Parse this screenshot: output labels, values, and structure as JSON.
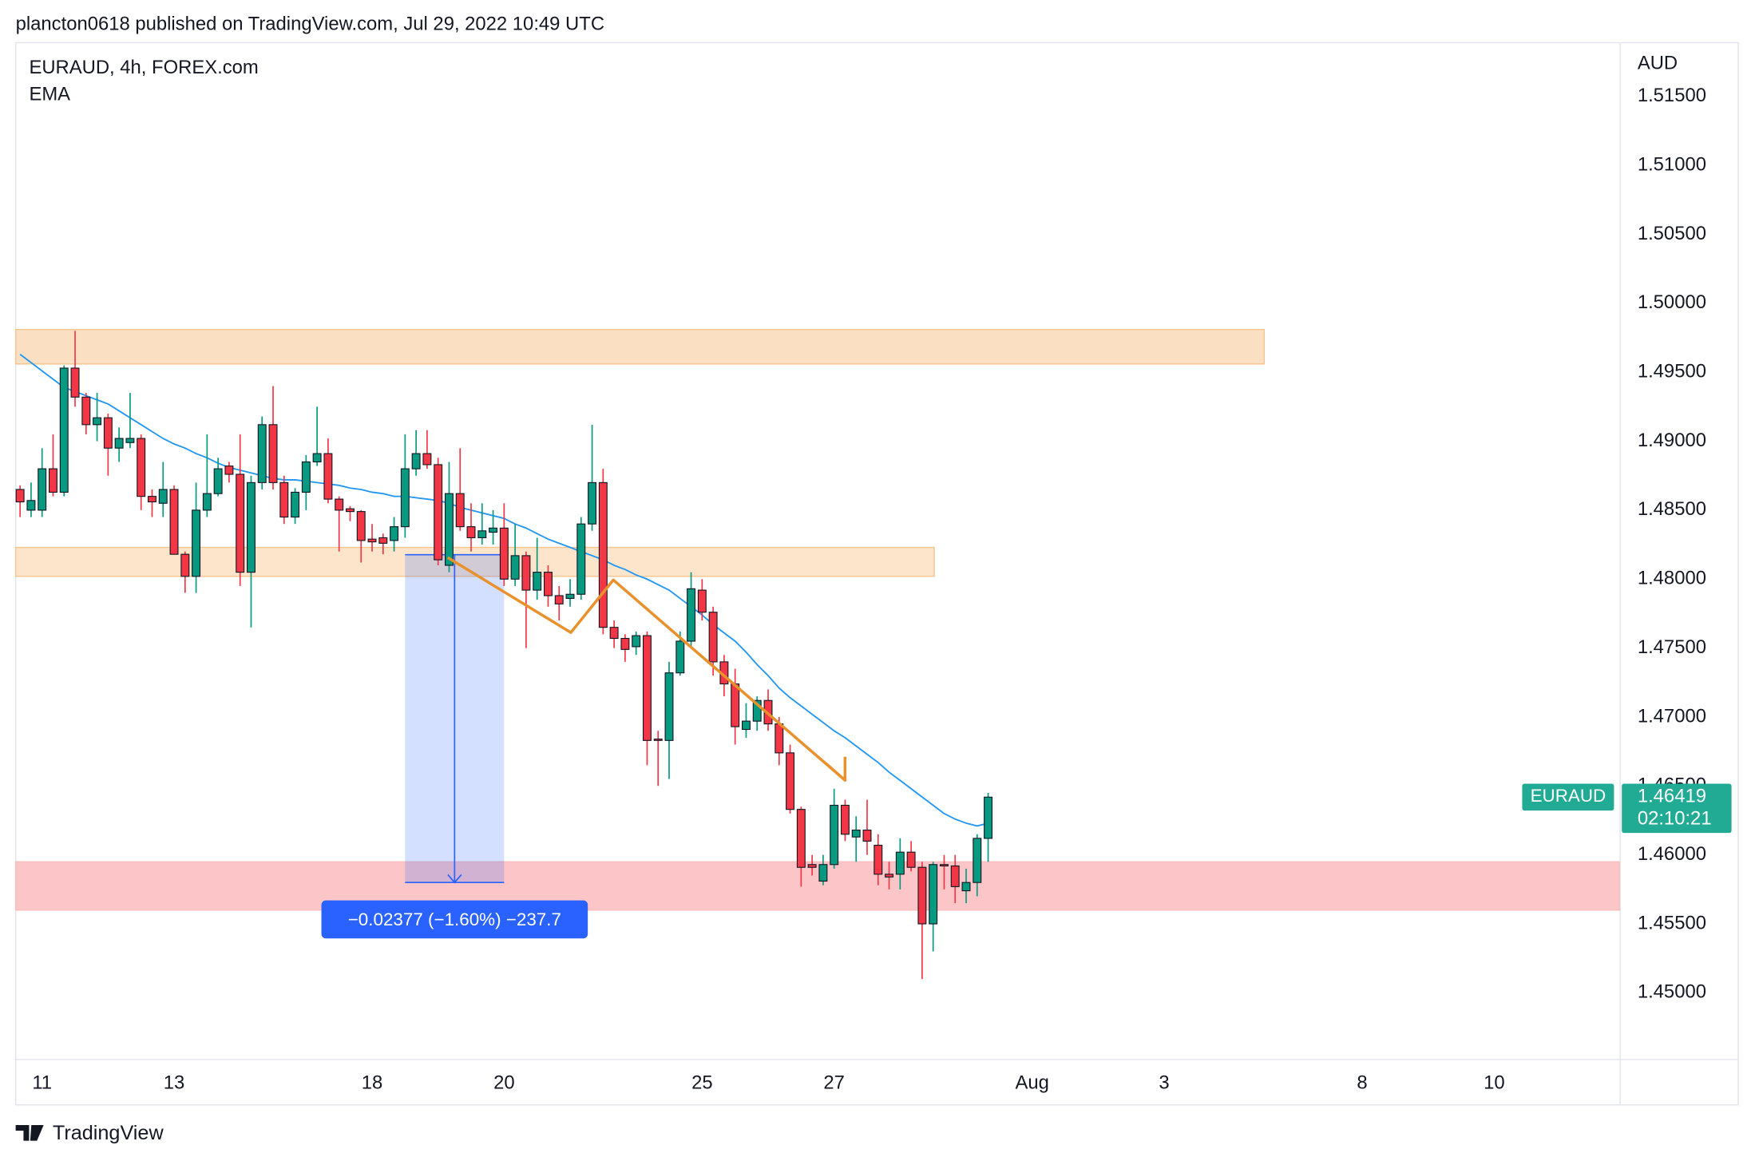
{
  "header": "plancton0618 published on TradingView.com, Jul 29, 2022 10:49 UTC",
  "footer": "TradingView",
  "chart_data": {
    "type": "candlestick",
    "title": "EURAUD, 4h, FOREX.com",
    "y_label": "AUD",
    "up_color": "#089981",
    "down_color": "#f23645",
    "open": [
      1.4865,
      1.485,
      1.485,
      1.488,
      1.4863,
      1.4953,
      1.4932,
      1.4912,
      1.4917,
      1.4895,
      1.4899,
      1.4902,
      1.486,
      1.4855,
      1.4865,
      1.4818,
      1.4802,
      1.485,
      1.4862,
      1.4882,
      1.4876,
      1.4805,
      1.487,
      1.4912,
      1.487,
      1.4845,
      1.4863,
      1.4885,
      1.4891,
      1.4858,
      1.4851,
      1.4849,
      1.4829,
      1.483,
      1.4828,
      1.4838,
      1.488,
      1.4891,
      1.4883,
      1.481,
      1.4862,
      1.4838,
      1.483,
      1.4834,
      1.4837,
      1.48,
      1.4817,
      1.4792,
      1.4805,
      1.4788,
      1.4786,
      1.4789,
      1.484,
      1.487,
      1.4765,
      1.4757,
      1.4751,
      1.4759,
      1.4684,
      1.4683,
      1.4732,
      1.4755,
      1.4792,
      1.4776,
      1.474,
      1.4724,
      1.4691,
      1.4697,
      1.4712,
      1.4695,
      1.4674,
      1.4633,
      1.4593,
      1.4581,
      1.4593,
      1.4636,
      1.4613,
      1.4618,
      1.4607,
      1.4586,
      1.4586,
      1.4602,
      1.4591,
      1.455,
      1.4593,
      1.4592,
      1.4574,
      1.458,
      1.4612
    ],
    "high": [
      1.4868,
      1.487,
      1.4895,
      1.4905,
      1.4955,
      1.498,
      1.4935,
      1.4935,
      1.492,
      1.491,
      1.4935,
      1.4905,
      1.4865,
      1.4885,
      1.4868,
      1.482,
      1.487,
      1.4905,
      1.4888,
      1.4885,
      1.4905,
      1.4875,
      1.4918,
      1.494,
      1.4875,
      1.4866,
      1.489,
      1.4925,
      1.4902,
      1.486,
      1.4853,
      1.485,
      1.484,
      1.4833,
      1.4845,
      1.4905,
      1.4908,
      1.4908,
      1.4888,
      1.4885,
      1.4895,
      1.4855,
      1.4855,
      1.485,
      1.4855,
      1.484,
      1.482,
      1.483,
      1.481,
      1.4795,
      1.48,
      1.4845,
      1.4912,
      1.488,
      1.477,
      1.476,
      1.4762,
      1.4762,
      1.469,
      1.474,
      1.4762,
      1.4805,
      1.48,
      1.478,
      1.4745,
      1.4735,
      1.471,
      1.4715,
      1.472,
      1.47,
      1.468,
      1.4635,
      1.46,
      1.46,
      1.4648,
      1.464,
      1.4628,
      1.464,
      1.4615,
      1.4595,
      1.4612,
      1.461,
      1.4595,
      1.4595,
      1.46,
      1.46,
      1.459,
      1.4615,
      1.4645
    ],
    "low": [
      1.4845,
      1.4845,
      1.4845,
      1.486,
      1.486,
      1.4925,
      1.4905,
      1.49,
      1.4875,
      1.4885,
      1.4895,
      1.485,
      1.4845,
      1.4845,
      1.4818,
      1.479,
      1.479,
      1.4845,
      1.486,
      1.487,
      1.4795,
      1.4765,
      1.4865,
      1.4865,
      1.484,
      1.484,
      1.485,
      1.4882,
      1.4855,
      1.482,
      1.4842,
      1.4812,
      1.482,
      1.4818,
      1.482,
      1.483,
      1.4875,
      1.488,
      1.481,
      1.4805,
      1.4835,
      1.482,
      1.4825,
      1.4825,
      1.4795,
      1.4795,
      1.475,
      1.4785,
      1.478,
      1.477,
      1.478,
      1.4785,
      1.4835,
      1.476,
      1.475,
      1.474,
      1.4745,
      1.4665,
      1.465,
      1.4655,
      1.473,
      1.475,
      1.477,
      1.473,
      1.4715,
      1.468,
      1.4685,
      1.469,
      1.469,
      1.4665,
      1.463,
      1.4577,
      1.4585,
      1.4578,
      1.459,
      1.461,
      1.4595,
      1.46,
      1.4578,
      1.4575,
      1.4575,
      1.4588,
      1.451,
      1.453,
      1.4575,
      1.4565,
      1.4565,
      1.457,
      1.4595
    ],
    "close": [
      1.4856,
      1.4857,
      1.488,
      1.4863,
      1.4953,
      1.4932,
      1.4912,
      1.4917,
      1.4895,
      1.4902,
      1.4902,
      1.486,
      1.4856,
      1.4865,
      1.4818,
      1.4802,
      1.485,
      1.4862,
      1.488,
      1.4876,
      1.4805,
      1.487,
      1.4912,
      1.487,
      1.4845,
      1.4863,
      1.4885,
      1.4891,
      1.4858,
      1.485,
      1.4849,
      1.4828,
      1.4827,
      1.4826,
      1.4838,
      1.488,
      1.4891,
      1.4883,
      1.4814,
      1.4862,
      1.4838,
      1.483,
      1.4835,
      1.4837,
      1.48,
      1.4817,
      1.4792,
      1.4805,
      1.4788,
      1.4782,
      1.4789,
      1.484,
      1.487,
      1.4765,
      1.4757,
      1.4749,
      1.4759,
      1.4683,
      1.4683,
      1.4732,
      1.4755,
      1.4793,
      1.4776,
      1.474,
      1.4724,
      1.4693,
      1.4697,
      1.4712,
      1.4695,
      1.4674,
      1.4633,
      1.4591,
      1.4591,
      1.4593,
      1.4636,
      1.4615,
      1.4618,
      1.461,
      1.4586,
      1.4584,
      1.4602,
      1.4591,
      1.455,
      1.4593,
      1.4592,
      1.4577,
      1.458,
      1.4612,
      1.46419
    ],
    "series": [
      {
        "name": "EMA",
        "color": "#2196f3",
        "values": [
          1.4963,
          1.4957,
          1.4951,
          1.4945,
          1.4939,
          1.4936,
          1.4933,
          1.493,
          1.4927,
          1.4922,
          1.4917,
          1.4912,
          1.4907,
          1.4902,
          1.4898,
          1.4895,
          1.4891,
          1.4888,
          1.4884,
          1.4881,
          1.4879,
          1.4877,
          1.4875,
          1.4873,
          1.4872,
          1.4872,
          1.4871,
          1.487,
          1.4869,
          1.4868,
          1.4866,
          1.4865,
          1.4863,
          1.4862,
          1.486,
          1.486,
          1.4859,
          1.4858,
          1.4857,
          1.4855,
          1.4852,
          1.485,
          1.4848,
          1.4846,
          1.4844,
          1.484,
          1.4837,
          1.4833,
          1.4829,
          1.4826,
          1.4823,
          1.482,
          1.4817,
          1.4814,
          1.481,
          1.4807,
          1.4803,
          1.48,
          1.4796,
          1.4792,
          1.4786,
          1.478,
          1.4774,
          1.4767,
          1.4761,
          1.4755,
          1.4747,
          1.4738,
          1.473,
          1.4721,
          1.4714,
          1.4708,
          1.4702,
          1.4696,
          1.469,
          1.4685,
          1.4679,
          1.4673,
          1.4667,
          1.466,
          1.4654,
          1.4648,
          1.4642,
          1.4636,
          1.463,
          1.4626,
          1.4623,
          1.4621,
          1.4623
        ]
      }
    ],
    "xlim": [
      -0.4,
      145.4
    ],
    "xticks": [
      {
        "value": 2,
        "label": "11"
      },
      {
        "value": 14,
        "label": "13"
      },
      {
        "value": 32,
        "label": "18"
      },
      {
        "value": 44,
        "label": "20"
      },
      {
        "value": 62,
        "label": "25"
      },
      {
        "value": 74,
        "label": "27"
      },
      {
        "value": 92,
        "label": "Aug"
      },
      {
        "value": 104,
        "label": "3"
      },
      {
        "value": 122,
        "label": "8"
      },
      {
        "value": 134,
        "label": "10"
      }
    ],
    "ylim": [
      1.4452,
      1.5189
    ],
    "yticks": [
      {
        "value": 1.45,
        "label": "1.45000"
      },
      {
        "value": 1.455,
        "label": "1.45500"
      },
      {
        "value": 1.46,
        "label": "1.46000"
      },
      {
        "value": 1.465,
        "label": "1.46500"
      },
      {
        "value": 1.47,
        "label": "1.47000"
      },
      {
        "value": 1.475,
        "label": "1.47500"
      },
      {
        "value": 1.48,
        "label": "1.48000"
      },
      {
        "value": 1.485,
        "label": "1.48500"
      },
      {
        "value": 1.49,
        "label": "1.49000"
      },
      {
        "value": 1.495,
        "label": "1.49500"
      },
      {
        "value": 1.5,
        "label": "1.50000"
      },
      {
        "value": 1.505,
        "label": "1.50500"
      },
      {
        "value": 1.51,
        "label": "1.51000"
      },
      {
        "value": 1.515,
        "label": "1.51500"
      }
    ],
    "zones": [
      {
        "x": [
          -0.4,
          113.1
        ],
        "y": [
          1.4956,
          1.4981
        ],
        "color": "#f9d9b8",
        "stroke": "#f5c58f"
      },
      {
        "x": [
          -0.4,
          83.1
        ],
        "y": [
          1.4802,
          1.4823
        ],
        "color": "#fbe0c2",
        "stroke": "#f5c58f"
      },
      {
        "x": [
          -0.4,
          145.4
        ],
        "y": [
          1.456,
          1.4595
        ],
        "color": "#fbbcbe",
        "stroke": "#fbbcbe"
      }
    ],
    "measure": {
      "x": [
        35.0,
        44.0
      ],
      "y": [
        1.48177,
        1.458
      ],
      "color": "#2962ff",
      "label": "−0.02377 (−1.60%) −237.7"
    },
    "price_badge": {
      "symbol": "EURAUD",
      "countdown": "02:10:21",
      "color": "#22ab94"
    }
  }
}
